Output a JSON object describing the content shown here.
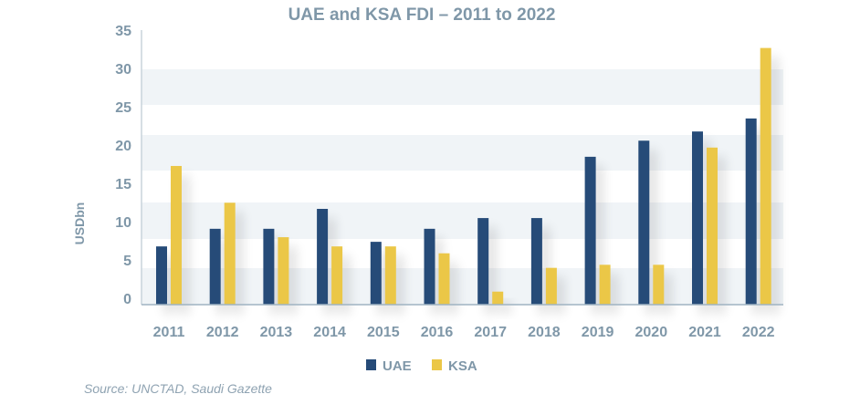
{
  "chart_data": {
    "type": "bar",
    "title": "UAE and KSA FDI – 2011 to 2022",
    "xlabel": "",
    "ylabel": "USDbn",
    "ylim": [
      0,
      35
    ],
    "yticks": [
      "0",
      "5",
      "10",
      "15",
      "20",
      "25",
      "30",
      "35"
    ],
    "categories": [
      "2011",
      "2012",
      "2013",
      "2014",
      "2015",
      "2016",
      "2017",
      "2018",
      "2019",
      "2020",
      "2021",
      "2022"
    ],
    "series": [
      {
        "name": "UAE",
        "color": "#264b78",
        "values": [
          7.6,
          9.9,
          9.9,
          12.5,
          8.2,
          9.9,
          11.3,
          11.3,
          19.3,
          21.4,
          22.6,
          24.3
        ]
      },
      {
        "name": "KSA",
        "color": "#ebc747",
        "values": [
          18.1,
          13.3,
          8.8,
          7.6,
          7.6,
          6.7,
          1.7,
          4.8,
          5.2,
          5.2,
          20.5,
          33.5
        ]
      }
    ],
    "grid": "alternating horizontal bands",
    "legend": "bottom-center",
    "source": "Source: UNCTAD, Saudi Gazette"
  }
}
